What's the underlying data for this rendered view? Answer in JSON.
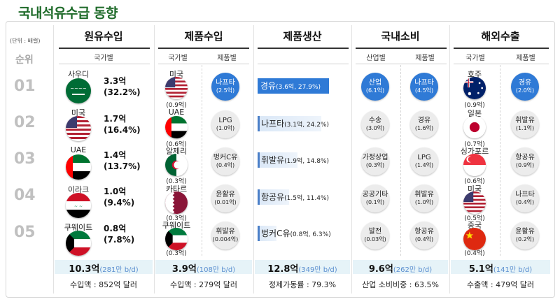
{
  "title": "국내석유수급 동향",
  "unit": "(단위 : 배럴)",
  "rank_header": "순위",
  "ranks": [
    "01",
    "02",
    "03",
    "04",
    "05"
  ],
  "sections": {
    "crude_import": {
      "header": "원유수입",
      "sub": "국가별",
      "items": [
        {
          "country": "사우디",
          "value": "3.3억",
          "pct": "(32.2%)"
        },
        {
          "country": "미국",
          "value": "1.7억",
          "pct": "(16.4%)"
        },
        {
          "country": "UAE",
          "value": "1.4억",
          "pct": "(13.7%)"
        },
        {
          "country": "이라크",
          "value": "1.0억",
          "pct": "(9.4%)"
        },
        {
          "country": "쿠웨이트",
          "value": "0.8억",
          "pct": "(7.8%)"
        }
      ],
      "total": "10.3억",
      "total_sub": "(281만 b/d)",
      "amount": "수입액 : 852억 달러"
    },
    "product_import": {
      "header": "제품수입",
      "sub_country": "국가별",
      "sub_product": "제품별",
      "countries": [
        {
          "name": "미국",
          "value": "(0.9억)"
        },
        {
          "name": "UAE",
          "value": "(0.6억)"
        },
        {
          "name": "알제리",
          "value": "(0.3억)"
        },
        {
          "name": "카타르",
          "value": "(0.3억)"
        },
        {
          "name": "쿠웨이트",
          "value": "(0.3억)"
        }
      ],
      "products": [
        {
          "name": "나프타",
          "value": "(2.5억)"
        },
        {
          "name": "LPG",
          "value": "(1.0억)"
        },
        {
          "name": "벙커C유",
          "value": "(0.4억)"
        },
        {
          "name": "윤활유",
          "value": "(0.01억)"
        },
        {
          "name": "휘발유",
          "value": "(0.004억)"
        }
      ],
      "total": "3.9억",
      "total_sub": "(108만 b/d)",
      "amount": "수입액 : 279억 달러"
    },
    "production": {
      "header": "제품생산",
      "items": [
        {
          "name": "경유",
          "detail": "(3.6억, 27.9%)"
        },
        {
          "name": "나프타",
          "detail": "(3.1억, 24.2%)"
        },
        {
          "name": "휘발유",
          "detail": "(1.9억, 14.8%)"
        },
        {
          "name": "항공유",
          "detail": "(1.5억, 11.4%)"
        },
        {
          "name": "벙커C유",
          "detail": "(0.8억, 6.3%)"
        }
      ],
      "total": "12.8억",
      "total_sub": "(349만 b/d)",
      "amount": "정제가동률 : 79.3%"
    },
    "consumption": {
      "header": "국내소비",
      "sub_industry": "산업별",
      "sub_product": "제품별",
      "industries": [
        {
          "name": "산업",
          "value": "(6.1억)"
        },
        {
          "name": "수송",
          "value": "(3.0억)"
        },
        {
          "name": "가정상업",
          "value": "(0.3억)"
        },
        {
          "name": "공공기타",
          "value": "(0.1억)"
        },
        {
          "name": "발전",
          "value": "(0.03억)"
        }
      ],
      "products": [
        {
          "name": "나프타",
          "value": "(4.5억)"
        },
        {
          "name": "경유",
          "value": "(1.6억)"
        },
        {
          "name": "LPG",
          "value": "(1.4억)"
        },
        {
          "name": "휘발유",
          "value": "(1.0억)"
        },
        {
          "name": "항공유",
          "value": "(0.4억)"
        }
      ],
      "total": "9.6억",
      "total_sub": "(262만 b/d)",
      "amount": "산업 소비비중 : 63.5%"
    },
    "export": {
      "header": "해외수출",
      "sub_country": "국가별",
      "sub_product": "제품별",
      "countries": [
        {
          "name": "호주",
          "value": "(0.9억)"
        },
        {
          "name": "일본",
          "value": "(0.7억)"
        },
        {
          "name": "싱가포르",
          "value": "(0.6억)"
        },
        {
          "name": "미국",
          "value": "(0.5억)"
        },
        {
          "name": "중국",
          "value": "(0.4억)"
        }
      ],
      "products": [
        {
          "name": "경유",
          "value": "(2.0억)"
        },
        {
          "name": "휘발유",
          "value": "(1.1억)"
        },
        {
          "name": "항공유",
          "value": "(0.9억)"
        },
        {
          "name": "나프타",
          "value": "(0.4억)"
        },
        {
          "name": "윤활유",
          "value": "(0.2억)"
        }
      ],
      "total": "5.1억",
      "total_sub": "(141만 b/d)",
      "amount": "수출액 : 479억 달러"
    }
  },
  "colors": {
    "title": "#1f6b2a",
    "accent_blue": "#2f7ad6",
    "total_band": "#e6f3f8",
    "rank_gray": "#c0c0c0"
  }
}
